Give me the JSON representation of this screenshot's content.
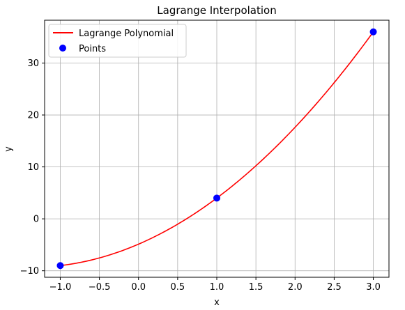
{
  "chart_data": {
    "type": "line",
    "title": "Lagrange Interpolation",
    "xlabel": "x",
    "ylabel": "y",
    "xlim": [
      -1.2,
      3.2
    ],
    "ylim": [
      -11.25,
      38.25
    ],
    "xticks": [
      -1.0,
      -0.5,
      0.0,
      0.5,
      1.0,
      1.5,
      2.0,
      2.5,
      3.0
    ],
    "xtick_labels": [
      "−1.0",
      "−0.5",
      "0.0",
      "0.5",
      "1.0",
      "1.5",
      "2.0",
      "2.5",
      "3.0"
    ],
    "yticks": [
      -10,
      0,
      10,
      20,
      30
    ],
    "ytick_labels": [
      "−10",
      "0",
      "10",
      "20",
      "30"
    ],
    "grid": true,
    "legend_position": "top-left",
    "series": [
      {
        "name": "Lagrange Polynomial",
        "kind": "line",
        "color": "#ff0000",
        "polynomial_coefficients": [
          -4.875,
          6.5,
          2.375
        ],
        "x_range": [
          -1,
          3
        ]
      },
      {
        "name": "Points",
        "kind": "scatter",
        "color": "#0000ff",
        "x": [
          -1,
          1,
          3
        ],
        "y": [
          -9,
          4,
          36
        ]
      }
    ]
  }
}
